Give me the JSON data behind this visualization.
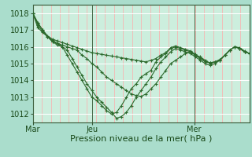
{
  "fig_bg_color": "#aaddcc",
  "plot_bg_color": "#cceedd",
  "grid_color_major_h": "#ffffff",
  "grid_color_minor_v": "#ffaaaa",
  "line_color": "#2d6a2d",
  "xlabel": "Pression niveau de la mer( hPa )",
  "xlabel_fontsize": 8,
  "tick_fontsize": 7,
  "ylim": [
    1011.5,
    1018.5
  ],
  "yticks": [
    1012,
    1013,
    1014,
    1015,
    1016,
    1017,
    1018
  ],
  "xtick_labels": [
    "Mar",
    "Jeu",
    "Mer"
  ],
  "xtick_positions": [
    0.0,
    0.275,
    0.745
  ],
  "n_minor_v": 24,
  "series": [
    [
      1018.0,
      1017.45,
      1017.0,
      1016.65,
      1016.45,
      1016.35,
      1016.25,
      1016.15,
      1016.05,
      1015.95,
      1015.85,
      1015.75,
      1015.65,
      1015.6,
      1015.55,
      1015.5,
      1015.45,
      1015.4,
      1015.35,
      1015.3,
      1015.25,
      1015.2,
      1015.15,
      1015.1,
      1015.2,
      1015.3,
      1015.5,
      1015.65,
      1015.95,
      1016.05,
      1015.95,
      1015.85,
      1015.75,
      1015.55,
      1015.35,
      1015.15,
      1015.05,
      1015.1,
      1015.25,
      1015.5,
      1015.8,
      1016.0,
      1015.95,
      1015.75,
      1015.6
    ],
    [
      1018.0,
      1017.4,
      1017.0,
      1016.6,
      1016.3,
      1016.2,
      1016.0,
      1015.5,
      1015.0,
      1014.5,
      1014.0,
      1013.5,
      1013.0,
      1012.8,
      1012.5,
      1012.2,
      1012.0,
      1012.1,
      1012.5,
      1013.0,
      1013.5,
      1013.8,
      1014.2,
      1014.4,
      1014.6,
      1015.1,
      1015.4,
      1015.6,
      1015.9,
      1016.0,
      1015.9,
      1015.8,
      1015.7,
      1015.5,
      1015.3,
      1015.1,
      1015.05,
      1015.1,
      1015.2,
      1015.5,
      1015.8,
      1016.0,
      1015.9,
      1015.7,
      1015.6
    ],
    [
      1018.0,
      1017.15,
      1016.85,
      1016.6,
      1016.4,
      1016.2,
      1016.1,
      1016.0,
      1015.9,
      1015.8,
      1015.5,
      1015.3,
      1015.0,
      1014.8,
      1014.5,
      1014.2,
      1014.0,
      1013.8,
      1013.6,
      1013.4,
      1013.2,
      1013.1,
      1013.05,
      1013.2,
      1013.5,
      1013.8,
      1014.2,
      1014.6,
      1015.0,
      1015.2,
      1015.4,
      1015.6,
      1015.7,
      1015.5,
      1015.4,
      1015.2,
      1015.0,
      1015.1,
      1015.2,
      1015.5,
      1015.8,
      1016.0,
      1015.9,
      1015.7,
      1015.6
    ],
    [
      1018.0,
      1017.3,
      1016.9,
      1016.6,
      1016.3,
      1016.1,
      1016.0,
      1015.8,
      1015.3,
      1014.8,
      1014.3,
      1013.8,
      1013.4,
      1013.0,
      1012.7,
      1012.4,
      1012.1,
      1011.75,
      1011.85,
      1012.1,
      1012.5,
      1013.0,
      1013.4,
      1013.8,
      1014.2,
      1014.7,
      1015.1,
      1015.4,
      1015.7,
      1015.9,
      1015.8,
      1015.7,
      1015.6,
      1015.4,
      1015.2,
      1015.0,
      1014.9,
      1015.0,
      1015.2,
      1015.5,
      1015.8,
      1016.0,
      1015.9,
      1015.7,
      1015.6
    ]
  ]
}
